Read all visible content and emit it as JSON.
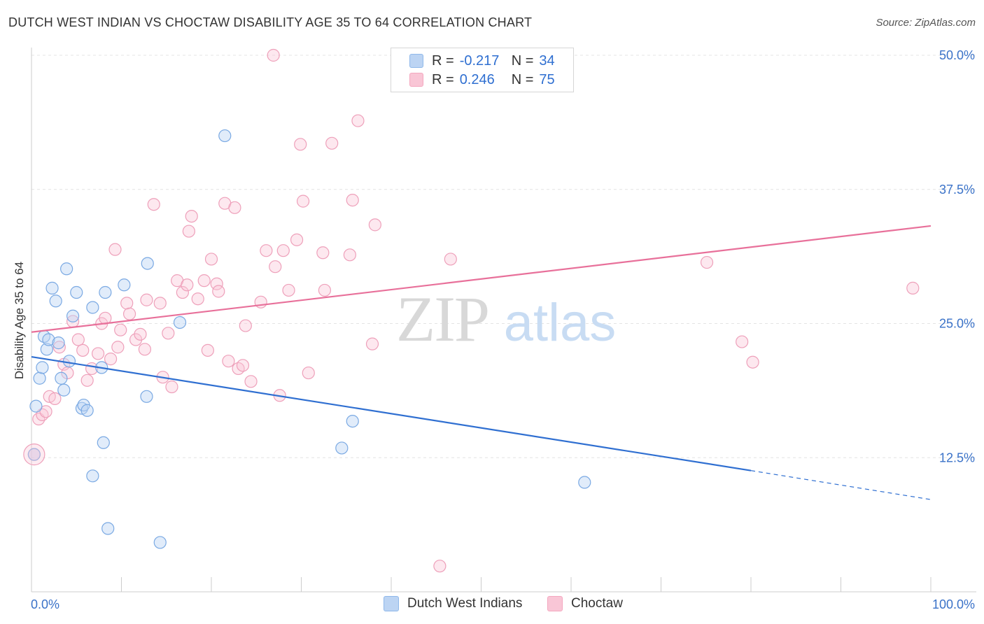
{
  "title": "DUTCH WEST INDIAN VS CHOCTAW DISABILITY AGE 35 TO 64 CORRELATION CHART",
  "source": "Source: ZipAtlas.com",
  "watermark": {
    "zip": "ZIP",
    "atlas": "atlas"
  },
  "legend": {
    "r_label": "R =",
    "n_label": "N =",
    "series": [
      {
        "name": "Dutch West Indians",
        "r": "-0.217",
        "n": "34"
      },
      {
        "name": "Choctaw",
        "r": "0.246",
        "n": "75"
      }
    ]
  },
  "chart_data": {
    "type": "scatter",
    "title": "DUTCH WEST INDIAN VS CHOCTAW DISABILITY AGE 35 TO 64 CORRELATION CHART",
    "xlabel": "",
    "ylabel": "Disability Age 35 to 64",
    "xlim": [
      0,
      100
    ],
    "ylim": [
      0,
      50
    ],
    "x_tick_labels": [
      "0.0%",
      "100.0%"
    ],
    "y_ticks": [
      12.5,
      25.0,
      37.5,
      50.0
    ],
    "y_tick_labels": [
      "12.5%",
      "25.0%",
      "37.5%",
      "50.0%"
    ],
    "grid": true,
    "series": [
      {
        "name": "Dutch West Indians",
        "color": "#8fb8ea",
        "line_color": "#2f6fd1",
        "points": [
          [
            0.3,
            12.8
          ],
          [
            0.5,
            17.3
          ],
          [
            0.9,
            19.9
          ],
          [
            1.2,
            20.9
          ],
          [
            1.4,
            23.8
          ],
          [
            1.7,
            22.6
          ],
          [
            1.9,
            23.5
          ],
          [
            2.3,
            28.3
          ],
          [
            2.7,
            27.1
          ],
          [
            3.0,
            23.2
          ],
          [
            3.3,
            19.9
          ],
          [
            3.6,
            18.8
          ],
          [
            3.9,
            30.1
          ],
          [
            4.2,
            21.5
          ],
          [
            4.6,
            25.7
          ],
          [
            5.0,
            27.9
          ],
          [
            5.6,
            17.1
          ],
          [
            5.8,
            17.4
          ],
          [
            6.2,
            16.9
          ],
          [
            6.8,
            10.8
          ],
          [
            6.8,
            26.5
          ],
          [
            7.8,
            20.9
          ],
          [
            8.0,
            13.9
          ],
          [
            8.2,
            27.9
          ],
          [
            8.5,
            5.9
          ],
          [
            10.3,
            28.6
          ],
          [
            12.8,
            18.2
          ],
          [
            12.9,
            30.6
          ],
          [
            14.3,
            4.6
          ],
          [
            16.5,
            25.1
          ],
          [
            21.5,
            42.5
          ],
          [
            34.5,
            13.4
          ],
          [
            35.7,
            15.9
          ],
          [
            61.5,
            10.2
          ]
        ],
        "trend": {
          "x0": 0,
          "y0": 21.9,
          "x1": 80,
          "y1": 11.3,
          "dash_to_x": 100,
          "dash_to_y": 8.6
        }
      },
      {
        "name": "Choctaw",
        "color": "#f4a7bf",
        "line_color": "#e8709a",
        "points": [
          [
            0.3,
            12.8
          ],
          [
            0.8,
            16.1
          ],
          [
            1.2,
            16.5
          ],
          [
            1.6,
            16.8
          ],
          [
            2.0,
            18.2
          ],
          [
            2.6,
            18.0
          ],
          [
            3.1,
            22.8
          ],
          [
            3.6,
            21.2
          ],
          [
            4.0,
            20.4
          ],
          [
            4.6,
            25.2
          ],
          [
            5.2,
            23.5
          ],
          [
            5.7,
            22.5
          ],
          [
            6.2,
            19.7
          ],
          [
            6.7,
            20.8
          ],
          [
            7.4,
            22.2
          ],
          [
            7.8,
            25.0
          ],
          [
            8.2,
            25.5
          ],
          [
            8.8,
            21.7
          ],
          [
            9.3,
            31.9
          ],
          [
            9.6,
            22.8
          ],
          [
            9.9,
            24.4
          ],
          [
            10.6,
            26.9
          ],
          [
            10.9,
            25.9
          ],
          [
            11.6,
            23.5
          ],
          [
            12.1,
            24.0
          ],
          [
            12.6,
            22.6
          ],
          [
            12.8,
            27.2
          ],
          [
            13.6,
            36.1
          ],
          [
            14.3,
            26.9
          ],
          [
            14.6,
            20.0
          ],
          [
            15.2,
            24.1
          ],
          [
            15.6,
            19.1
          ],
          [
            16.2,
            29.0
          ],
          [
            16.8,
            27.9
          ],
          [
            17.3,
            28.6
          ],
          [
            17.5,
            33.6
          ],
          [
            17.8,
            35.0
          ],
          [
            18.5,
            27.3
          ],
          [
            19.2,
            29.0
          ],
          [
            19.6,
            22.5
          ],
          [
            20.0,
            31.0
          ],
          [
            20.6,
            28.7
          ],
          [
            20.8,
            28.0
          ],
          [
            21.5,
            36.2
          ],
          [
            21.9,
            21.5
          ],
          [
            22.6,
            35.8
          ],
          [
            23.0,
            20.8
          ],
          [
            23.5,
            21.1
          ],
          [
            23.8,
            24.8
          ],
          [
            24.4,
            19.6
          ],
          [
            25.5,
            27.0
          ],
          [
            26.1,
            31.8
          ],
          [
            26.9,
            50.0
          ],
          [
            27.1,
            30.3
          ],
          [
            27.6,
            18.3
          ],
          [
            28.0,
            31.8
          ],
          [
            28.6,
            28.1
          ],
          [
            29.5,
            32.8
          ],
          [
            29.9,
            41.7
          ],
          [
            30.2,
            36.4
          ],
          [
            30.8,
            20.4
          ],
          [
            32.4,
            31.6
          ],
          [
            32.6,
            28.1
          ],
          [
            33.4,
            41.8
          ],
          [
            35.4,
            31.4
          ],
          [
            35.7,
            36.5
          ],
          [
            36.3,
            43.9
          ],
          [
            37.9,
            23.1
          ],
          [
            38.2,
            34.2
          ],
          [
            45.4,
            2.4
          ],
          [
            46.6,
            31.0
          ],
          [
            75.1,
            30.7
          ],
          [
            79.0,
            23.3
          ],
          [
            80.2,
            21.4
          ],
          [
            98.0,
            28.3
          ]
        ],
        "trend": {
          "x0": 0,
          "y0": 24.2,
          "x1": 100,
          "y1": 34.1
        }
      }
    ]
  }
}
